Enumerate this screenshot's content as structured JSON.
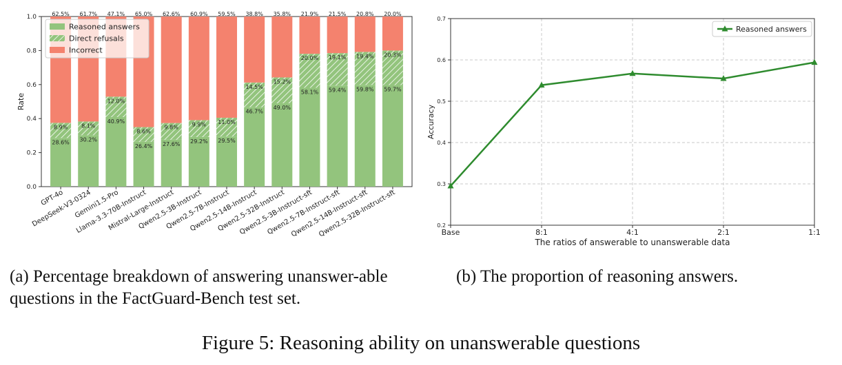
{
  "chart_data": [
    {
      "type": "bar",
      "title": "",
      "xlabel": "",
      "ylabel": "Rate",
      "ylim": [
        0,
        1.0
      ],
      "yticks": [
        "0.0",
        "0.2",
        "0.4",
        "0.6",
        "0.8",
        "1.0"
      ],
      "legend_position": "top-left",
      "categories": [
        "GPT-4o",
        "DeepSeek-V3-0324",
        "Gemini1.5-Pro",
        "Llama-3.3-70B-Instruct",
        "Mistral-Large-Instruct",
        "Qwen2.5-3B-Instruct",
        "Qwen2.5-7B-Instruct",
        "Qwen2.5-14B-Instruct",
        "Qwen2.5-32B-Instruct",
        "Qwen2.5-3B-Instruct-sft",
        "Qwen2.5-7B-Instruct-sft",
        "Qwen2.5-14B-Instruct-sft",
        "Qwen2.5-32B-Instruct-sft"
      ],
      "series": [
        {
          "name": "Reasoned answers",
          "color": "#93c47d",
          "values": [
            28.6,
            30.2,
            40.9,
            26.4,
            27.6,
            29.2,
            29.5,
            46.7,
            49.0,
            58.1,
            59.4,
            59.8,
            59.7
          ],
          "labels": [
            "28.6%",
            "30.2%",
            "40.9%",
            "26.4%",
            "27.6%",
            "29.2%",
            "29.5%",
            "46.7%",
            "49.0%",
            "58.1%",
            "59.4%",
            "59.8%",
            "59.7%"
          ]
        },
        {
          "name": "Direct refusals",
          "color": "#93c47d",
          "hatch": true,
          "values": [
            8.9,
            8.1,
            12.0,
            8.6,
            9.8,
            9.9,
            11.0,
            14.5,
            15.2,
            20.0,
            19.1,
            19.4,
            20.3
          ],
          "labels": [
            "8.9%",
            "8.1%",
            "12.0%",
            "8.6%",
            "9.8%",
            "9.9%",
            "11.0%",
            "14.5%",
            "15.2%",
            "20.0%",
            "19.1%",
            "19.4%",
            "20.3%"
          ]
        },
        {
          "name": "Incorrect",
          "color": "#f4826e",
          "values": [
            62.5,
            61.7,
            47.1,
            65.0,
            62.6,
            60.9,
            59.5,
            38.8,
            35.8,
            21.9,
            21.5,
            20.8,
            20.0
          ],
          "labels": [
            "62.5%",
            "61.7%",
            "47.1%",
            "65.0%",
            "62.6%",
            "60.9%",
            "59.5%",
            "38.8%",
            "35.8%",
            "21.9%",
            "21.5%",
            "20.8%",
            "20.0%"
          ]
        }
      ]
    },
    {
      "type": "line",
      "title": "",
      "xlabel": "The ratios of answerable to unanswerable data",
      "ylabel": "Accuracy",
      "ylim": [
        0.2,
        0.7
      ],
      "yticks": [
        "0.2",
        "0.3",
        "0.4",
        "0.5",
        "0.6",
        "0.7"
      ],
      "grid": true,
      "legend_position": "top-right",
      "categories": [
        "Base",
        "8:1",
        "4:1",
        "2:1",
        "1:1"
      ],
      "series": [
        {
          "name": "Reasoned answers",
          "color": "#2e8b2e",
          "values": [
            0.295,
            0.539,
            0.567,
            0.555,
            0.594
          ]
        }
      ]
    }
  ],
  "captions": {
    "a": "(a) Percentage breakdown of answering unanswer-able questions in the FactGuard-Bench test set.",
    "b": "(b) The proportion of reasoning answers.",
    "figure": "Figure 5: Reasoning ability on unanswerable questions"
  }
}
